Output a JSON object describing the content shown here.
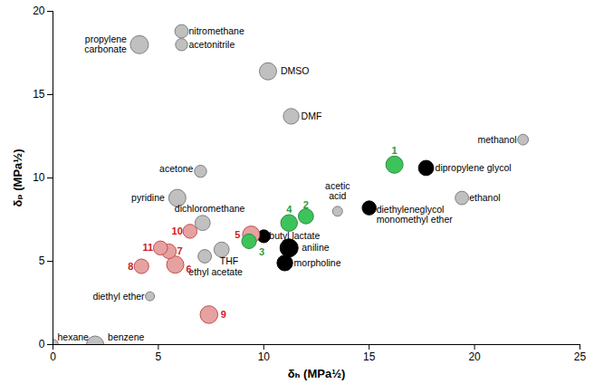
{
  "chart_data": {
    "type": "scatter",
    "xlabel": "δₕ (MPa½)",
    "ylabel": "δₚ (MPa½)",
    "xlim": [
      0,
      25
    ],
    "ylim": [
      0,
      20
    ],
    "xticks": [
      0,
      5,
      10,
      15,
      20,
      25
    ],
    "yticks": [
      0,
      5,
      10,
      15,
      20
    ],
    "grid": false,
    "series": [
      {
        "color": "#c0c0c0",
        "labels": [
          "propylene\ncarbonate",
          "nitromethane",
          "acetonitrile",
          "DMSO",
          "DMF",
          "methanol",
          "acetone",
          "pyridine",
          "dichloromethane",
          "acetic\nacid",
          "ethanol",
          "THF",
          "ethyl acetate",
          "diethyl ether",
          "hexane",
          "benzene"
        ],
        "x": [
          4.1,
          6.1,
          6.1,
          10.2,
          11.3,
          22.3,
          7.0,
          5.9,
          7.1,
          13.5,
          19.4,
          8.0,
          7.2,
          4.6,
          0.0,
          2.0
        ],
        "y": [
          18.0,
          18.8,
          18.0,
          16.4,
          13.7,
          12.3,
          10.4,
          8.8,
          7.3,
          8.0,
          8.8,
          5.7,
          5.3,
          2.9,
          0.0,
          0.0
        ],
        "size": [
          4,
          2.2,
          1.8,
          3.6,
          3,
          1.4,
          1.8,
          3.6,
          2.8,
          1.2,
          2.2,
          2.8,
          2.2,
          1,
          1.4,
          3.6
        ]
      },
      {
        "color": "#000000",
        "labels": [
          "dipropylene glycol",
          "diethyleneglycol\nmonomethyl ether",
          "butyl lactate",
          "aniline",
          "morpholine"
        ],
        "x": [
          17.7,
          15.0,
          10.0,
          11.2,
          11.0
        ],
        "y": [
          10.6,
          8.2,
          6.5,
          5.8,
          4.9
        ],
        "size": [
          2.8,
          2.4,
          2,
          4,
          3
        ]
      },
      {
        "color": "#e6a1a1",
        "labels": [
          "5",
          "6",
          "7",
          "8",
          "9",
          "10",
          "11"
        ],
        "x": [
          9.4,
          5.8,
          5.5,
          4.2,
          7.4,
          6.5,
          5.1
        ],
        "y": [
          6.6,
          4.8,
          5.6,
          4.7,
          1.8,
          6.8,
          5.8
        ],
        "size": [
          3.6,
          3.6,
          2.6,
          2.6,
          3.8,
          2.4,
          2.4
        ]
      },
      {
        "color": "#3cc45a",
        "labels": [
          "1",
          "2",
          "3",
          "4"
        ],
        "x": [
          16.2,
          12.0,
          9.3,
          11.2
        ],
        "y": [
          10.8,
          7.7,
          6.2,
          7.3
        ],
        "size": [
          3.6,
          2.8,
          2.6,
          3.4
        ]
      }
    ]
  }
}
